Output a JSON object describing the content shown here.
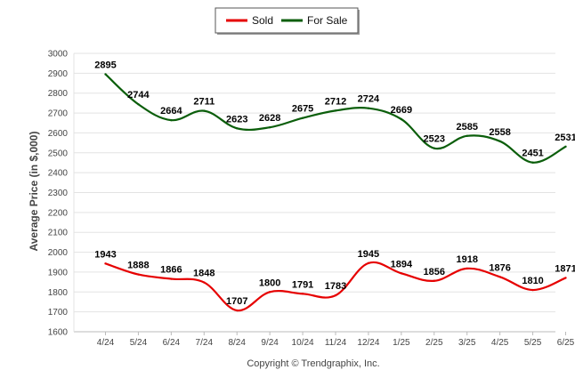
{
  "chart_data": {
    "type": "line",
    "ylabel": "Average Price (in $,000)",
    "credit": "Copyright © Trendgraphix, Inc.",
    "ylim": [
      1600,
      3000
    ],
    "yticks": [
      1600,
      1700,
      1800,
      1900,
      2000,
      2100,
      2200,
      2300,
      2400,
      2500,
      2600,
      2700,
      2800,
      2900,
      3000
    ],
    "grid": true,
    "legend": "top-center",
    "categories": [
      "4/24",
      "5/24",
      "6/24",
      "7/24",
      "8/24",
      "9/24",
      "10/24",
      "11/24",
      "12/24",
      "1/25",
      "2/25",
      "3/25",
      "4/25",
      "5/25",
      "6/25"
    ],
    "series": [
      {
        "name": "Sold",
        "color": "#e60000",
        "values": [
          1943,
          1888,
          1866,
          1848,
          1707,
          1800,
          1791,
          1783,
          1945,
          1894,
          1856,
          1918,
          1876,
          1810,
          1871
        ]
      },
      {
        "name": "For Sale",
        "color": "#0b5e0b",
        "values": [
          2895,
          2744,
          2664,
          2711,
          2623,
          2628,
          2675,
          2712,
          2724,
          2669,
          2523,
          2585,
          2558,
          2451,
          2531
        ]
      }
    ]
  }
}
